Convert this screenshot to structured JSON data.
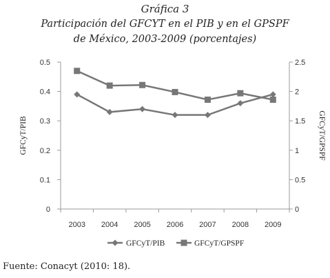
{
  "figure": {
    "title": "Gráfica 3",
    "subtitle_line1": "Participación del GFCYT en el PIB y en el GPSPF",
    "subtitle_line2": "de México, 2003-2009 (porcentajes)"
  },
  "source": "Fuente: Conacyt (2010: 18).",
  "chart_data": {
    "type": "line",
    "categories": [
      "2003",
      "2004",
      "2005",
      "2006",
      "2007",
      "2008",
      "2009"
    ],
    "ylabel_left": "GFCyT/PIB",
    "ylabel_right": "GFCyT/GPSPF",
    "ylim_left": [
      0,
      0.5
    ],
    "yticks_left": [
      "0",
      "0.1",
      "0.2",
      "0.3",
      "0.4",
      "0.5"
    ],
    "ylim_right": [
      0,
      2.5
    ],
    "yticks_right": [
      "0",
      "0.5",
      "1",
      "1.5",
      "2",
      "2.5"
    ],
    "legend_position": "bottom",
    "grid": false,
    "series": [
      {
        "name": "GFCyT/PIB",
        "axis": "left",
        "marker": "diamond",
        "color": "#777777",
        "values": [
          0.39,
          0.33,
          0.34,
          0.32,
          0.32,
          0.36,
          0.39
        ]
      },
      {
        "name": "GFCyT/GPSPF",
        "axis": "right",
        "marker": "square",
        "color": "#777777",
        "values": [
          2.35,
          2.1,
          2.11,
          1.99,
          1.86,
          1.97,
          1.86
        ]
      }
    ]
  }
}
